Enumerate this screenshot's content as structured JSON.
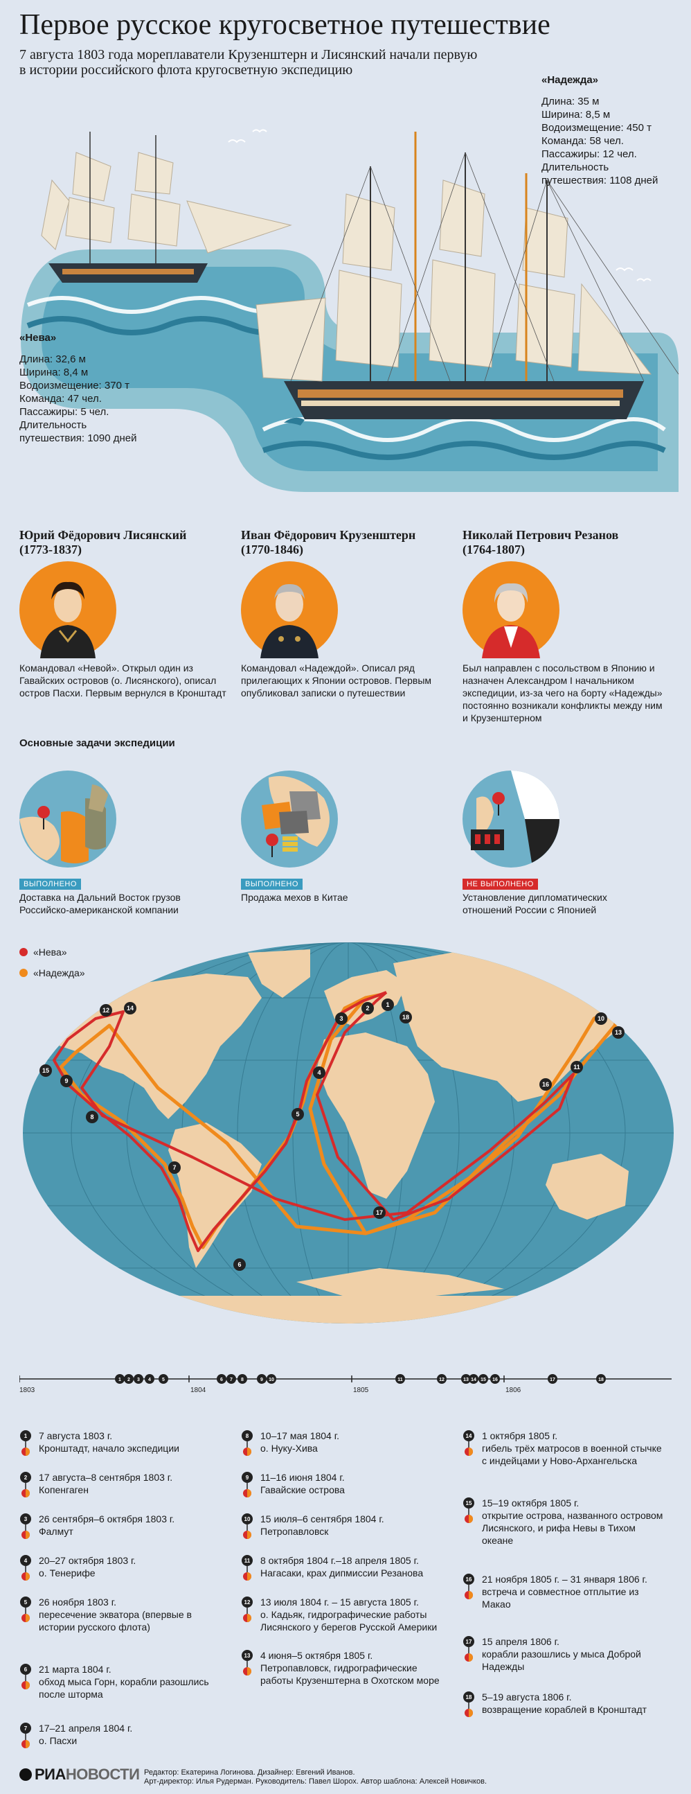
{
  "header": {
    "title": "Первое русское кругосветное путешествие",
    "subtitle_line1": "7 августа 1803 года мореплаватели Крузенштерн и Лисянский начали первую",
    "subtitle_line2": "в истории российского флота кругосветную экспедицию"
  },
  "ships": {
    "nadezhda": {
      "name": "«Надежда»",
      "lines": [
        "Длина: 35 м",
        "Ширина: 8,5 м",
        "Водоизмещение: 450 т",
        "Команда: 58 чел.",
        "Пассажиры: 12 чел.",
        "Длительность",
        "путешествия: 1108 дней"
      ]
    },
    "neva": {
      "name": "«Нева»",
      "lines": [
        "Длина: 32,6 м",
        "Ширина: 8,4 м",
        "Водоизмещение: 370 т",
        "Команда: 47 чел.",
        "Пассажиры: 5 чел.",
        "Длительность",
        "путешествия: 1090 дней"
      ]
    }
  },
  "people": [
    {
      "name1": "Юрий Фёдорович Лисянский",
      "name2": "(1773-1837)",
      "desc": "Командовал «Невой». Открыл один из Гавайских островов (о. Лисянского), описал остров Пасхи. Первым вернулся в Кронштадт"
    },
    {
      "name1": "Иван Фёдорович Крузенштерн",
      "name2": "(1770-1846)",
      "desc": "Командовал «Надеждой». Описал ряд прилегающих к Японии островов. Первым опубликовал записки о путешествии"
    },
    {
      "name1": "Николай Петрович Резанов",
      "name2": "(1764-1807)",
      "desc": "Был направлен с посольством в Японию и назначен Александром I начальником экспедиции, из-за чего на борту «Надежды» постоянно возникали конфликты между ним и Крузенштерном"
    }
  ],
  "tasks": {
    "title": "Основные задачи экспедиции",
    "items": [
      {
        "status": "ВЫПОЛНЕНО",
        "status_color": "#3a9bbf",
        "text": "Доставка на Дальний Восток грузов Российско-американской компании"
      },
      {
        "status": "ВЫПОЛНЕНО",
        "status_color": "#3a9bbf",
        "text": "Продажа мехов в Китае"
      },
      {
        "status": "НЕ ВЫПОЛНЕНО",
        "status_color": "#d62b2b",
        "text": "Установление дипломатических отношений России с Японией"
      }
    ]
  },
  "legend": {
    "neva": {
      "label": "«Нева»",
      "color": "#d62b2b"
    },
    "nadezhda": {
      "label": "«Надежда»",
      "color": "#f08a1c"
    }
  },
  "timeline": {
    "years": [
      "1803",
      "1804",
      "1805",
      "1806"
    ],
    "markers": [
      "1",
      "2",
      "3",
      "4",
      "5",
      "6",
      "7",
      "8",
      "9",
      "10",
      "11",
      "12",
      "13",
      "14",
      "15",
      "16",
      "17",
      "18"
    ]
  },
  "events": [
    {
      "num": "1",
      "date": "7 августа 1803 г.",
      "text": "Кронштадт, начало экспедиции"
    },
    {
      "num": "2",
      "date": "17 августа–8 сентября 1803 г.",
      "text": "Копенгаген"
    },
    {
      "num": "3",
      "date": "26 сентября–6 октября 1803 г.",
      "text": "Фалмут"
    },
    {
      "num": "4",
      "date": "20–27 октября 1803 г.",
      "text": "о. Тенерифе"
    },
    {
      "num": "5",
      "date": "26 ноября 1803 г.",
      "text": "пересечение экватора (впервые в истории русского флота)"
    },
    {
      "num": "6",
      "date": "21 марта 1804 г.",
      "text": "обход мыса Горн, корабли разошлись после шторма"
    },
    {
      "num": "7",
      "date": "17–21 апреля 1804 г.",
      "text": "о. Пасхи"
    },
    {
      "num": "8",
      "date": "10–17 мая 1804 г.",
      "text": "о. Нуку-Хива"
    },
    {
      "num": "9",
      "date": "11–16 июня 1804 г.",
      "text": "Гавайские острова"
    },
    {
      "num": "10",
      "date": "15 июля–6 сентября 1804 г.",
      "text": "Петропавловск"
    },
    {
      "num": "11",
      "date": "8 октября 1804 г.–18 апреля 1805 г.",
      "text": "Нагасаки, крах дипмиссии Резанова"
    },
    {
      "num": "12",
      "date": "13 июля 1804 г. – 15 августа 1805 г.",
      "text": "о. Кадьяк, гидрографические работы Лисянского у берегов Русской Америки"
    },
    {
      "num": "13",
      "date": "4 июня–5 октября 1805 г.",
      "text": "Петропавловск, гидрографические работы Крузенштерна в Охотском море"
    },
    {
      "num": "14",
      "date": "1 октября 1805 г.",
      "text": "гибель трёх матросов в военной стычке с индейцами у Ново-Архангельска"
    },
    {
      "num": "15",
      "date": "15–19 октября 1805 г.",
      "text": "открытие острова, названного островом Лисянского, и рифа Невы в Тихом океане"
    },
    {
      "num": "16",
      "date": "21 ноября 1805 г. – 31 января 1806 г.",
      "text": "встреча и совместное отплытие из Макао"
    },
    {
      "num": "17",
      "date": "15 апреля 1806 г.",
      "text": "корабли разошлись у мыса Доброй Надежды"
    },
    {
      "num": "18",
      "date": "5–19 августа 1806 г.",
      "text": "возвращение кораблей в Кронштадт"
    }
  ],
  "footer": {
    "logo_ria": "РИА",
    "logo_novosti": "НОВОСТИ",
    "credits1": "Редактор: Екатерина Логинова. Дизайнер: Евгений Иванов.",
    "credits2": "Арт-директор: Илья Рудерман. Руководитель: Павел Шорох. Автор шаблона: Алексей Новичков."
  }
}
